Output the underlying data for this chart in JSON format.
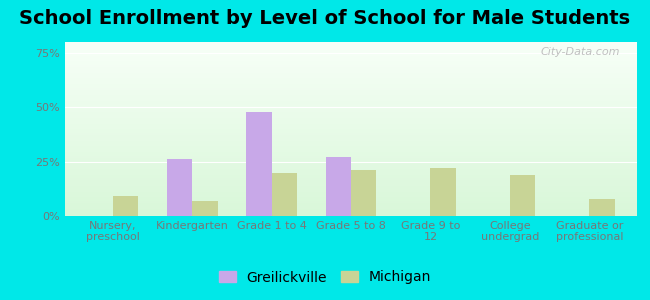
{
  "title": "School Enrollment by Level of School for Male Students",
  "categories": [
    "Nursery,\npreschool",
    "Kindergarten",
    "Grade 1 to 4",
    "Grade 5 to 8",
    "Grade 9 to\n12",
    "College\nundergrad",
    "Graduate or\nprofessional"
  ],
  "greilickville": [
    0,
    26,
    48,
    27,
    0,
    0,
    0
  ],
  "michigan": [
    9,
    7,
    20,
    21,
    22,
    19,
    8
  ],
  "greilickville_color": "#c8a8e8",
  "michigan_color": "#c8d496",
  "legend_greilickville": "Greilickville",
  "legend_michigan": "Michigan",
  "ylim": [
    0,
    80
  ],
  "yticks": [
    0,
    25,
    50,
    75
  ],
  "yticklabels": [
    "0%",
    "25%",
    "50%",
    "75%"
  ],
  "outer_bg": "#00e8e8",
  "title_fontsize": 14,
  "tick_fontsize": 8,
  "legend_fontsize": 10,
  "bar_width": 0.32,
  "watermark": "City-Data.com"
}
